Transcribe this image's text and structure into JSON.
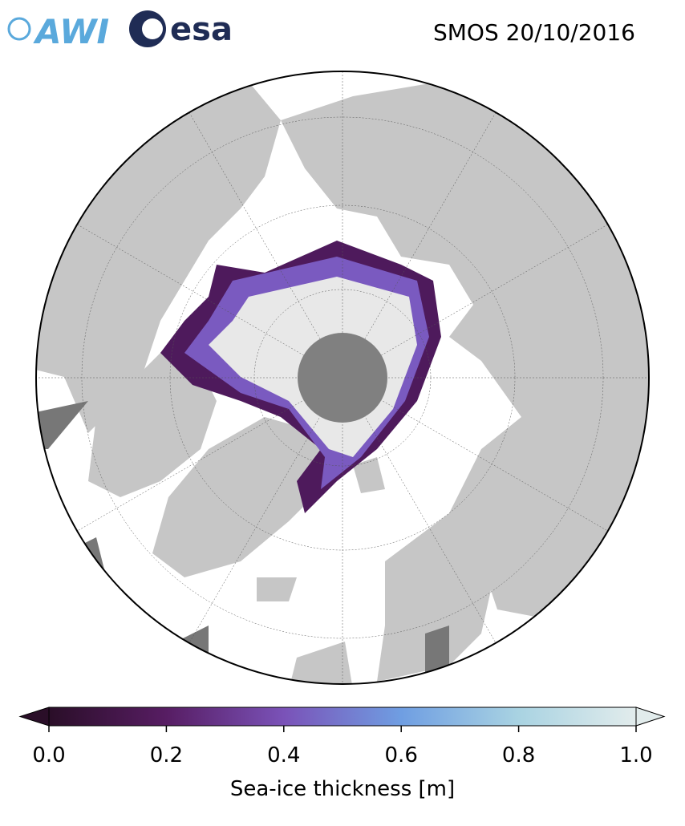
{
  "header": {
    "logos": {
      "awi": "AWI",
      "esa": "esa"
    },
    "title": "SMOS 20/10/2016"
  },
  "colorbar": {
    "label": "Sea-ice thickness [m]",
    "lim": [
      0,
      1
    ],
    "ticks": [
      {
        "value": 0,
        "label": "0.0"
      },
      {
        "value": 0.2,
        "label": "0.2"
      },
      {
        "value": 0.4,
        "label": "0.4"
      },
      {
        "value": 0.6,
        "label": "0.6"
      },
      {
        "value": 0.8,
        "label": "0.8"
      },
      {
        "value": 1,
        "label": "1.0"
      }
    ],
    "colors": [
      "#2a0e28",
      "#571d63",
      "#7a52b8",
      "#6f9ee2",
      "#a9d3e2",
      "#e2ecec"
    ]
  }
}
